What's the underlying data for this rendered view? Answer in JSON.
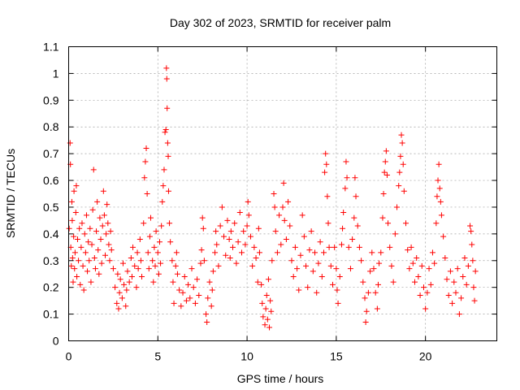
{
  "chart_data": {
    "type": "scatter",
    "title": "Day 302 of 2023, SRMTID for receiver palm",
    "xlabel": "GPS time / hours",
    "ylabel": "SRMTID / TECUs",
    "xlim": [
      0,
      24
    ],
    "ylim": [
      0,
      1.1
    ],
    "xticks": [
      0,
      5,
      10,
      15,
      20
    ],
    "xtick_labels": [
      "0",
      "5",
      "10",
      "15",
      "20"
    ],
    "yticks": [
      0,
      0.1,
      0.2,
      0.3,
      0.4,
      0.5,
      0.6,
      0.7,
      0.8,
      0.9,
      1,
      1.1
    ],
    "ytick_labels": [
      "0",
      "0.1",
      "0.2",
      "0.3",
      "0.4",
      "0.5",
      "0.6",
      "0.7",
      "0.8",
      "0.9",
      "1",
      "1.1"
    ],
    "grid": true,
    "marker": "+",
    "color": "#ff0000",
    "series": [
      {
        "name": "SRMTID",
        "points": [
          [
            0.03,
            0.42
          ],
          [
            0.08,
            0.74
          ],
          [
            0.1,
            0.66
          ],
          [
            0.12,
            0.35
          ],
          [
            0.15,
            0.28
          ],
          [
            0.18,
            0.52
          ],
          [
            0.2,
            0.45
          ],
          [
            0.22,
            0.31
          ],
          [
            0.25,
            0.22
          ],
          [
            0.28,
            0.39
          ],
          [
            0.3,
            0.56
          ],
          [
            0.33,
            0.27
          ],
          [
            0.36,
            0.33
          ],
          [
            0.4,
            0.48
          ],
          [
            0.43,
            0.58
          ],
          [
            0.46,
            0.24
          ],
          [
            0.5,
            0.38
          ],
          [
            0.55,
            0.3
          ],
          [
            0.6,
            0.42
          ],
          [
            0.65,
            0.21
          ],
          [
            0.7,
            0.35
          ],
          [
            0.75,
            0.44
          ],
          [
            0.8,
            0.28
          ],
          [
            0.85,
            0.19
          ],
          [
            0.9,
            0.4
          ],
          [
            0.95,
            0.33
          ],
          [
            1.0,
            0.47
          ],
          [
            1.05,
            0.26
          ],
          [
            1.1,
            0.37
          ],
          [
            1.15,
            0.3
          ],
          [
            1.2,
            0.42
          ],
          [
            1.25,
            0.22
          ],
          [
            1.3,
            0.36
          ],
          [
            1.35,
            0.49
          ],
          [
            1.4,
            0.64
          ],
          [
            1.45,
            0.31
          ],
          [
            1.5,
            0.27
          ],
          [
            1.55,
            0.41
          ],
          [
            1.6,
            0.52
          ],
          [
            1.65,
            0.34
          ],
          [
            1.7,
            0.25
          ],
          [
            1.75,
            0.46
          ],
          [
            1.8,
            0.38
          ],
          [
            1.85,
            0.29
          ],
          [
            1.9,
            0.43
          ],
          [
            1.95,
            0.56
          ],
          [
            2.0,
            0.47
          ],
          [
            2.05,
            0.32
          ],
          [
            2.1,
            0.4
          ],
          [
            2.15,
            0.51
          ],
          [
            2.2,
            0.44
          ],
          [
            2.25,
            0.36
          ],
          [
            2.3,
            0.3
          ],
          [
            2.35,
            0.41
          ],
          [
            2.4,
            0.34
          ],
          [
            2.5,
            0.27
          ],
          [
            2.6,
            0.2
          ],
          [
            2.7,
            0.14
          ],
          [
            2.75,
            0.25
          ],
          [
            2.8,
            0.12
          ],
          [
            2.85,
            0.18
          ],
          [
            2.9,
            0.23
          ],
          [
            3.0,
            0.16
          ],
          [
            3.05,
            0.29
          ],
          [
            3.1,
            0.21
          ],
          [
            3.2,
            0.13
          ],
          [
            3.25,
            0.19
          ],
          [
            3.3,
            0.26
          ],
          [
            3.4,
            0.22
          ],
          [
            3.5,
            0.31
          ],
          [
            3.55,
            0.24
          ],
          [
            3.6,
            0.35
          ],
          [
            3.7,
            0.28
          ],
          [
            3.8,
            0.2
          ],
          [
            3.85,
            0.33
          ],
          [
            3.9,
            0.27
          ],
          [
            4.0,
            0.38
          ],
          [
            4.05,
            0.3
          ],
          [
            4.1,
            0.24
          ],
          [
            4.2,
            0.44
          ],
          [
            4.25,
            0.61
          ],
          [
            4.3,
            0.67
          ],
          [
            4.35,
            0.72
          ],
          [
            4.4,
            0.55
          ],
          [
            4.45,
            0.33
          ],
          [
            4.5,
            0.27
          ],
          [
            4.55,
            0.39
          ],
          [
            4.6,
            0.46
          ],
          [
            4.7,
            0.3
          ],
          [
            4.75,
            0.22
          ],
          [
            4.8,
            0.35
          ],
          [
            4.85,
            0.28
          ],
          [
            4.9,
            0.41
          ],
          [
            5.0,
            0.33
          ],
          [
            5.05,
            0.25
          ],
          [
            5.1,
            0.37
          ],
          [
            5.15,
            0.29
          ],
          [
            5.2,
            0.43
          ],
          [
            5.25,
            0.52
          ],
          [
            5.3,
            0.58
          ],
          [
            5.35,
            0.64
          ],
          [
            5.4,
            0.78
          ],
          [
            5.45,
            0.79
          ],
          [
            5.48,
            1.02
          ],
          [
            5.5,
            0.98
          ],
          [
            5.52,
            0.87
          ],
          [
            5.55,
            0.74
          ],
          [
            5.58,
            0.69
          ],
          [
            5.6,
            0.56
          ],
          [
            5.65,
            0.44
          ],
          [
            5.7,
            0.37
          ],
          [
            5.8,
            0.3
          ],
          [
            5.85,
            0.22
          ],
          [
            5.9,
            0.14
          ],
          [
            6.0,
            0.28
          ],
          [
            6.05,
            0.33
          ],
          [
            6.1,
            0.25
          ],
          [
            6.2,
            0.19
          ],
          [
            6.3,
            0.13
          ],
          [
            6.4,
            0.18
          ],
          [
            6.5,
            0.24
          ],
          [
            6.6,
            0.15
          ],
          [
            6.7,
            0.21
          ],
          [
            6.8,
            0.16
          ],
          [
            6.9,
            0.27
          ],
          [
            7.0,
            0.2
          ],
          [
            7.1,
            0.14
          ],
          [
            7.2,
            0.23
          ],
          [
            7.3,
            0.17
          ],
          [
            7.4,
            0.29
          ],
          [
            7.45,
            0.34
          ],
          [
            7.5,
            0.46
          ],
          [
            7.55,
            0.42
          ],
          [
            7.6,
            0.3
          ],
          [
            7.7,
            0.1
          ],
          [
            7.75,
            0.07
          ],
          [
            7.8,
            0.16
          ],
          [
            7.9,
            0.22
          ],
          [
            8.0,
            0.13
          ],
          [
            8.05,
            0.19
          ],
          [
            8.1,
            0.26
          ],
          [
            8.2,
            0.33
          ],
          [
            8.25,
            0.41
          ],
          [
            8.3,
            0.36
          ],
          [
            8.4,
            0.28
          ],
          [
            8.5,
            0.43
          ],
          [
            8.6,
            0.5
          ],
          [
            8.7,
            0.39
          ],
          [
            8.8,
            0.32
          ],
          [
            8.9,
            0.45
          ],
          [
            9.0,
            0.38
          ],
          [
            9.05,
            0.31
          ],
          [
            9.1,
            0.41
          ],
          [
            9.2,
            0.35
          ],
          [
            9.3,
            0.44
          ],
          [
            9.4,
            0.29
          ],
          [
            9.5,
            0.37
          ],
          [
            9.6,
            0.48
          ],
          [
            9.7,
            0.33
          ],
          [
            9.8,
            0.41
          ],
          [
            9.9,
            0.36
          ],
          [
            10.0,
            0.43
          ],
          [
            10.05,
            0.52
          ],
          [
            10.1,
            0.47
          ],
          [
            10.2,
            0.39
          ],
          [
            10.3,
            0.28
          ],
          [
            10.4,
            0.35
          ],
          [
            10.5,
            0.31
          ],
          [
            10.6,
            0.22
          ],
          [
            10.65,
            0.42
          ],
          [
            10.7,
            0.33
          ],
          [
            10.8,
            0.21
          ],
          [
            10.85,
            0.14
          ],
          [
            10.9,
            0.09
          ],
          [
            11.0,
            0.06
          ],
          [
            11.05,
            0.12
          ],
          [
            11.1,
            0.17
          ],
          [
            11.15,
            0.08
          ],
          [
            11.2,
            0.23
          ],
          [
            11.25,
            0.05
          ],
          [
            11.3,
            0.15
          ],
          [
            11.35,
            0.11
          ],
          [
            11.4,
            0.3
          ],
          [
            11.5,
            0.55
          ],
          [
            11.55,
            0.5
          ],
          [
            11.6,
            0.41
          ],
          [
            11.7,
            0.33
          ],
          [
            11.8,
            0.47
          ],
          [
            11.9,
            0.36
          ],
          [
            12.0,
            0.5
          ],
          [
            12.05,
            0.59
          ],
          [
            12.1,
            0.45
          ],
          [
            12.2,
            0.38
          ],
          [
            12.3,
            0.52
          ],
          [
            12.4,
            0.43
          ],
          [
            12.5,
            0.3
          ],
          [
            12.6,
            0.24
          ],
          [
            12.7,
            0.35
          ],
          [
            12.8,
            0.27
          ],
          [
            12.9,
            0.19
          ],
          [
            13.0,
            0.32
          ],
          [
            13.1,
            0.47
          ],
          [
            13.2,
            0.39
          ],
          [
            13.3,
            0.28
          ],
          [
            13.4,
            0.2
          ],
          [
            13.5,
            0.34
          ],
          [
            13.6,
            0.41
          ],
          [
            13.7,
            0.26
          ],
          [
            13.8,
            0.33
          ],
          [
            13.9,
            0.18
          ],
          [
            14.0,
            0.29
          ],
          [
            14.1,
            0.37
          ],
          [
            14.2,
            0.24
          ],
          [
            14.3,
            0.33
          ],
          [
            14.35,
            0.63
          ],
          [
            14.4,
            0.7
          ],
          [
            14.45,
            0.66
          ],
          [
            14.5,
            0.54
          ],
          [
            14.55,
            0.44
          ],
          [
            14.6,
            0.35
          ],
          [
            14.7,
            0.28
          ],
          [
            14.8,
            0.21
          ],
          [
            14.9,
            0.35
          ],
          [
            15.0,
            0.27
          ],
          [
            15.05,
            0.19
          ],
          [
            15.1,
            0.14
          ],
          [
            15.2,
            0.24
          ],
          [
            15.3,
            0.36
          ],
          [
            15.35,
            0.42
          ],
          [
            15.4,
            0.48
          ],
          [
            15.5,
            0.57
          ],
          [
            15.55,
            0.67
          ],
          [
            15.6,
            0.61
          ],
          [
            15.7,
            0.35
          ],
          [
            15.8,
            0.27
          ],
          [
            15.9,
            0.38
          ],
          [
            16.0,
            0.46
          ],
          [
            16.05,
            0.61
          ],
          [
            16.1,
            0.54
          ],
          [
            16.2,
            0.43
          ],
          [
            16.3,
            0.35
          ],
          [
            16.4,
            0.3
          ],
          [
            16.5,
            0.22
          ],
          [
            16.6,
            0.16
          ],
          [
            16.65,
            0.07
          ],
          [
            16.7,
            0.11
          ],
          [
            16.8,
            0.18
          ],
          [
            16.9,
            0.26
          ],
          [
            17.0,
            0.33
          ],
          [
            17.1,
            0.27
          ],
          [
            17.2,
            0.18
          ],
          [
            17.3,
            0.12
          ],
          [
            17.35,
            0.21
          ],
          [
            17.4,
            0.29
          ],
          [
            17.5,
            0.33
          ],
          [
            17.6,
            0.46
          ],
          [
            17.65,
            0.55
          ],
          [
            17.7,
            0.63
          ],
          [
            17.75,
            0.67
          ],
          [
            17.8,
            0.71
          ],
          [
            17.85,
            0.62
          ],
          [
            17.9,
            0.44
          ],
          [
            18.0,
            0.35
          ],
          [
            18.1,
            0.28
          ],
          [
            18.2,
            0.22
          ],
          [
            18.3,
            0.4
          ],
          [
            18.4,
            0.5
          ],
          [
            18.5,
            0.58
          ],
          [
            18.55,
            0.63
          ],
          [
            18.6,
            0.69
          ],
          [
            18.65,
            0.77
          ],
          [
            18.7,
            0.74
          ],
          [
            18.75,
            0.66
          ],
          [
            18.8,
            0.56
          ],
          [
            18.9,
            0.44
          ],
          [
            19.0,
            0.34
          ],
          [
            19.1,
            0.27
          ],
          [
            19.2,
            0.35
          ],
          [
            19.3,
            0.29
          ],
          [
            19.4,
            0.22
          ],
          [
            19.5,
            0.31
          ],
          [
            19.6,
            0.24
          ],
          [
            19.7,
            0.17
          ],
          [
            19.8,
            0.28
          ],
          [
            19.9,
            0.2
          ],
          [
            20.0,
            0.12
          ],
          [
            20.1,
            0.18
          ],
          [
            20.2,
            0.27
          ],
          [
            20.3,
            0.21
          ],
          [
            20.4,
            0.33
          ],
          [
            20.5,
            0.29
          ],
          [
            20.6,
            0.44
          ],
          [
            20.65,
            0.54
          ],
          [
            20.7,
            0.6
          ],
          [
            20.75,
            0.66
          ],
          [
            20.8,
            0.57
          ],
          [
            20.85,
            0.52
          ],
          [
            20.9,
            0.47
          ],
          [
            21.0,
            0.39
          ],
          [
            21.1,
            0.31
          ],
          [
            21.2,
            0.23
          ],
          [
            21.3,
            0.17
          ],
          [
            21.4,
            0.26
          ],
          [
            21.5,
            0.14
          ],
          [
            21.6,
            0.22
          ],
          [
            21.7,
            0.18
          ],
          [
            21.8,
            0.27
          ],
          [
            21.9,
            0.1
          ],
          [
            22.0,
            0.16
          ],
          [
            22.1,
            0.24
          ],
          [
            22.2,
            0.31
          ],
          [
            22.3,
            0.21
          ],
          [
            22.4,
            0.28
          ],
          [
            22.5,
            0.43
          ],
          [
            22.55,
            0.41
          ],
          [
            22.6,
            0.36
          ],
          [
            22.65,
            0.3
          ],
          [
            22.7,
            0.2
          ],
          [
            22.75,
            0.15
          ],
          [
            22.8,
            0.26
          ]
        ]
      }
    ]
  }
}
